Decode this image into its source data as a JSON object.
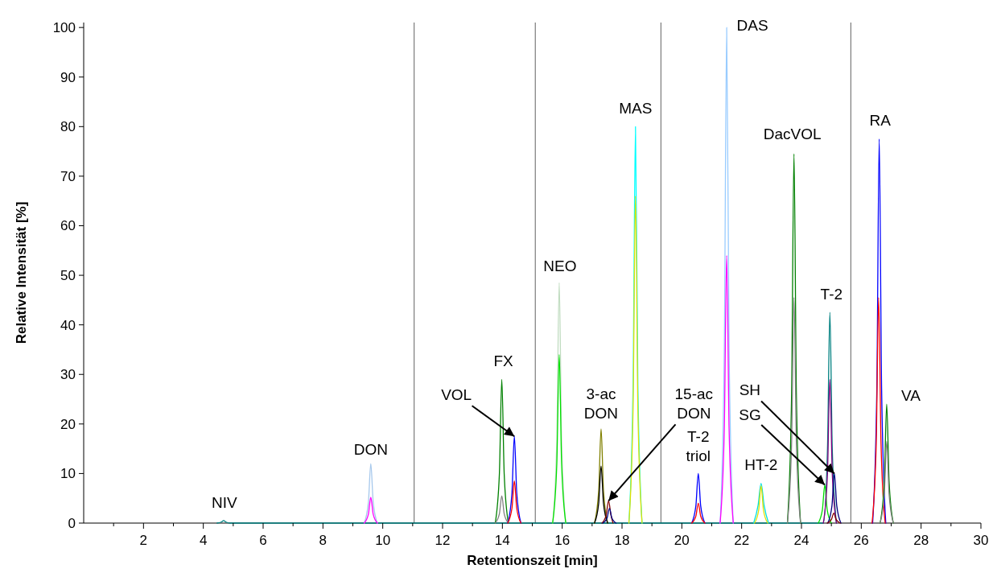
{
  "chart_data": {
    "type": "line",
    "xlabel": "Retentionszeit [min]",
    "ylabel": "Relative Intensität [%]",
    "xlim": [
      0,
      30
    ],
    "ylim": [
      0,
      101
    ],
    "xticks": [
      {
        "value": 1,
        "label": null
      },
      2,
      {
        "value": 3,
        "label": null
      },
      4,
      {
        "value": 5,
        "label": null
      },
      6,
      {
        "value": 7,
        "label": null
      },
      8,
      {
        "value": 9,
        "label": null
      },
      10,
      {
        "value": 11,
        "label": null
      },
      12,
      {
        "value": 13,
        "label": null
      },
      14,
      {
        "value": 15,
        "label": null
      },
      16,
      {
        "value": 17,
        "label": null
      },
      18,
      {
        "value": 19,
        "label": null
      },
      20,
      {
        "value": 21,
        "label": null
      },
      22,
      {
        "value": 23,
        "label": null
      },
      24,
      {
        "value": 25,
        "label": null
      },
      26,
      {
        "value": 27,
        "label": null
      },
      28,
      {
        "value": 29,
        "label": null
      },
      30
    ],
    "yticks": [
      0,
      10,
      20,
      30,
      40,
      50,
      60,
      70,
      80,
      90,
      100
    ],
    "grid": false,
    "ref_lines": [
      {
        "axis": "x",
        "value": 11.05,
        "color": "#606060"
      },
      {
        "axis": "x",
        "value": 15.1,
        "color": "#606060"
      },
      {
        "axis": "x",
        "value": 19.3,
        "color": "#606060"
      },
      {
        "axis": "x",
        "value": 25.65,
        "color": "#606060"
      }
    ],
    "series": [
      {
        "color": "#008080",
        "x": [
          4.46,
          4.6,
          4.68,
          4.76,
          4.9,
          24.73,
          24.87,
          24.95,
          25.03,
          25.17
        ],
        "values": [
          0,
          0.2,
          0.5,
          0.2,
          0,
          0,
          15,
          42.5,
          15,
          0
        ]
      },
      {
        "color": "#a6c8ec",
        "x": [
          9.38,
          9.52,
          9.6,
          9.68,
          9.82
        ],
        "values": [
          0,
          4.2,
          12,
          4.2,
          0
        ]
      },
      {
        "color": "#ff00ff",
        "x": [
          9.38,
          9.52,
          9.6,
          9.68,
          9.82
        ],
        "values": [
          0,
          1.8,
          5.2,
          1.8,
          0
        ]
      },
      {
        "color": "#008000",
        "x": [
          13.76,
          13.9,
          13.98,
          14.06,
          14.2
        ],
        "values": [
          0,
          10,
          29,
          10,
          0
        ]
      },
      {
        "color": "#808080",
        "x": [
          13.76,
          13.9,
          13.98,
          14.06,
          14.2
        ],
        "values": [
          0,
          1.9,
          5.5,
          1.9,
          0
        ]
      },
      {
        "color": "#0000ff",
        "x": [
          14.18,
          14.32,
          14.4,
          14.48,
          14.62
        ],
        "values": [
          0,
          6.1,
          17.5,
          6.1,
          0
        ]
      },
      {
        "color": "#ff0000",
        "x": [
          14.18,
          14.32,
          14.4,
          14.48,
          14.62
        ],
        "values": [
          0,
          3,
          8.5,
          3,
          0
        ]
      },
      {
        "color": "#c0dcc0",
        "x": [
          15.68,
          15.82,
          15.9,
          15.98,
          16.12
        ],
        "values": [
          0,
          17,
          48.5,
          17,
          0
        ]
      },
      {
        "color": "#00e000",
        "x": [
          15.68,
          15.82,
          15.9,
          15.98,
          16.12
        ],
        "values": [
          0,
          12,
          34,
          12,
          0
        ]
      },
      {
        "color": "#808000",
        "x": [
          17.08,
          17.22,
          17.3,
          17.38,
          17.52
        ],
        "values": [
          0,
          6.6,
          19,
          6.6,
          0
        ]
      },
      {
        "color": "#000000",
        "x": [
          17.08,
          17.22,
          17.3,
          17.38,
          17.52
        ],
        "values": [
          0,
          4,
          11.5,
          4,
          0
        ]
      },
      {
        "color": "#800000",
        "x": [
          17.33,
          17.47,
          17.55,
          17.63,
          17.7
        ],
        "values": [
          0,
          1.6,
          4.5,
          1.6,
          0
        ]
      },
      {
        "color": "#000080",
        "x": [
          17.36,
          17.5,
          17.58,
          17.66,
          17.8
        ],
        "values": [
          0,
          1,
          3,
          1,
          0
        ]
      },
      {
        "color": "#00ffff",
        "x": [
          18.23,
          18.37,
          18.45,
          18.53,
          18.67
        ],
        "values": [
          0,
          28,
          80,
          28,
          0
        ]
      },
      {
        "color": "#e0e000",
        "x": [
          18.23,
          18.37,
          18.45,
          18.53,
          18.67
        ],
        "values": [
          0,
          23,
          66,
          23,
          0
        ]
      },
      {
        "color": "#0000ff",
        "x": [
          20.33,
          20.47,
          20.55,
          20.63,
          20.77
        ],
        "values": [
          0,
          3.5,
          10,
          3.5,
          0
        ]
      },
      {
        "color": "#ff0000",
        "x": [
          20.33,
          20.47,
          20.55,
          20.63,
          20.77
        ],
        "values": [
          0,
          1.4,
          4,
          1.4,
          0
        ]
      },
      {
        "color": "#99ccff",
        "x": [
          21.28,
          21.42,
          21.5,
          21.58,
          21.72
        ],
        "values": [
          0,
          35,
          100,
          35,
          0
        ]
      },
      {
        "color": "#ff00ff",
        "x": [
          21.28,
          21.42,
          21.5,
          21.58,
          21.72
        ],
        "values": [
          0,
          19,
          54,
          19,
          0
        ]
      },
      {
        "color": "#00e0e0",
        "x": [
          22.4,
          22.55,
          22.65,
          22.75,
          22.9
        ],
        "values": [
          0,
          3.6,
          8,
          3.6,
          0
        ]
      },
      {
        "color": "#e0e000",
        "x": [
          22.43,
          22.57,
          22.65,
          22.73,
          22.87
        ],
        "values": [
          0,
          2.6,
          7.5,
          2.6,
          0
        ]
      },
      {
        "color": "#008000",
        "x": [
          23.53,
          23.67,
          23.75,
          23.83,
          23.97
        ],
        "values": [
          0,
          26,
          74.5,
          26,
          0
        ]
      },
      {
        "color": "#808080",
        "x": [
          23.53,
          23.67,
          23.75,
          23.83,
          23.97
        ],
        "values": [
          0,
          16,
          45.5,
          16,
          0
        ]
      },
      {
        "color": "#00dd00",
        "x": [
          24.56,
          24.7,
          24.78,
          24.86,
          25
        ],
        "values": [
          0,
          2.7,
          7.7,
          2.7,
          0
        ]
      },
      {
        "color": "#800080",
        "x": [
          24.73,
          24.87,
          24.95,
          25.03,
          25.17
        ],
        "values": [
          0,
          10,
          29,
          10,
          0
        ]
      },
      {
        "color": "#000080",
        "x": [
          24.88,
          25.02,
          25.1,
          25.18,
          25.32
        ],
        "values": [
          0,
          3.5,
          10,
          3.5,
          0
        ]
      },
      {
        "color": "#800000",
        "x": [
          24.86,
          25,
          25.08,
          25.16,
          25.3
        ],
        "values": [
          0,
          0.7,
          2,
          0.7,
          0
        ]
      },
      {
        "color": "#0000ff",
        "x": [
          26.38,
          26.52,
          26.6,
          26.68,
          26.82
        ],
        "values": [
          0,
          27,
          77.5,
          27,
          0
        ]
      },
      {
        "color": "#ff0000",
        "x": [
          26.36,
          26.5,
          26.58,
          26.66,
          26.8
        ],
        "values": [
          0,
          16,
          45.5,
          16,
          0
        ]
      },
      {
        "color": "#008000",
        "x": [
          26.63,
          26.77,
          26.85,
          26.93,
          27.07
        ],
        "values": [
          0,
          8.4,
          24,
          8.4,
          0
        ]
      },
      {
        "color": "#808080",
        "x": [
          26.63,
          26.77,
          26.85,
          26.93,
          27.07
        ],
        "values": [
          0,
          5.8,
          16.5,
          5.8,
          0
        ]
      }
    ],
    "annotations": [
      {
        "text": "NIV",
        "x": 4.68,
        "y": 0.5
      },
      {
        "text": "DON",
        "x": 9.6,
        "y": 12
      },
      {
        "text": "FX",
        "x": 13.98,
        "y": 29
      },
      {
        "text": "VOL",
        "x": 14.4,
        "y": 17.5
      },
      {
        "text": "NEO",
        "x": 15.9,
        "y": 48.5
      },
      {
        "text": "3-ac\nDON",
        "x": 17.3,
        "y": 19
      },
      {
        "text": "15-ac\nDON",
        "x": 17.55,
        "y": 4.5
      },
      {
        "text": "MAS",
        "x": 18.45,
        "y": 80
      },
      {
        "text": "T-2\ntriol",
        "x": 20.55,
        "y": 10
      },
      {
        "text": "DAS",
        "x": 21.5,
        "y": 100
      },
      {
        "text": "HT-2",
        "x": 22.65,
        "y": 8
      },
      {
        "text": "DacVOL",
        "x": 23.75,
        "y": 74.5
      },
      {
        "text": "SH",
        "x": 25.1,
        "y": 10
      },
      {
        "text": "SG",
        "x": 24.78,
        "y": 7.7
      },
      {
        "text": "T-2",
        "x": 24.95,
        "y": 42.5
      },
      {
        "text": "RA",
        "x": 26.6,
        "y": 77.5
      },
      {
        "text": "VA",
        "x": 26.85,
        "y": 24
      }
    ]
  }
}
